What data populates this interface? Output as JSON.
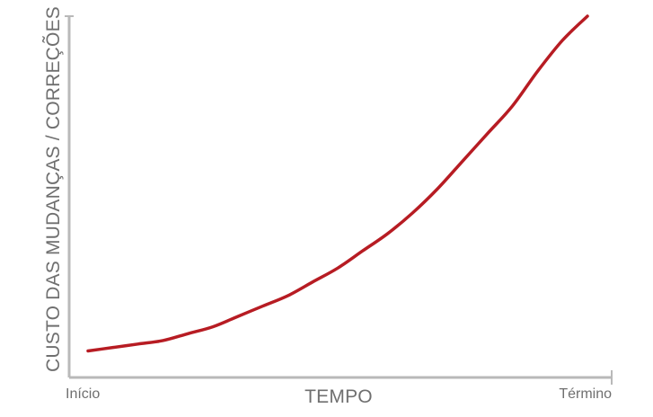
{
  "chart_data": {
    "type": "line",
    "title": "",
    "xlabel": "TEMPO",
    "ylabel": "CUSTO DAS MUDANÇAS / CORREÇÕES",
    "x_tick_labels": {
      "start": "Início",
      "end": "Término"
    },
    "xlim": [
      0,
      1
    ],
    "ylim": [
      0,
      1
    ],
    "grid": false,
    "legend": "none",
    "colors": {
      "axis": "#b9b9b9",
      "text": "#6f6f6f",
      "series": "#b71c23"
    },
    "series": [
      {
        "x": [
          0.0,
          0.05,
          0.1,
          0.15,
          0.2,
          0.25,
          0.3,
          0.35,
          0.4,
          0.45,
          0.5,
          0.55,
          0.6,
          0.65,
          0.7,
          0.75,
          0.8,
          0.85,
          0.9,
          0.95,
          1.0
        ],
        "y": [
          0.03,
          0.04,
          0.05,
          0.06,
          0.08,
          0.1,
          0.13,
          0.16,
          0.19,
          0.23,
          0.27,
          0.32,
          0.37,
          0.43,
          0.5,
          0.58,
          0.66,
          0.74,
          0.84,
          0.93,
          1.0
        ]
      }
    ]
  }
}
